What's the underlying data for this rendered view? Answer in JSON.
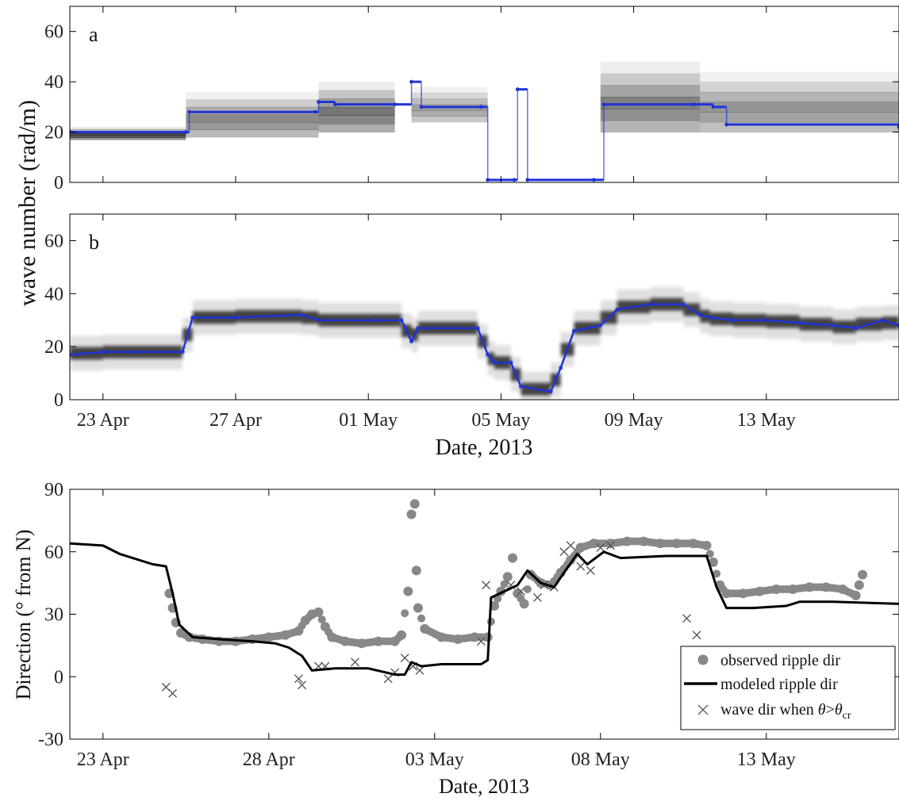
{
  "figure": {
    "date_axis_label": "Date, 2013",
    "wavenumber_axis_label": "wave number (rad/m)",
    "direction_axis_label": "Direction (° from N)"
  },
  "colors": {
    "trace": "#1f33d6",
    "observed": "#888888",
    "modeled": "#000000",
    "cross": "#555555",
    "axis": "#000000"
  },
  "chart_data": [
    {
      "id": "a",
      "type": "heatmap",
      "panel_label": "a",
      "ylabel": "wave number (rad/m)",
      "xlabel": "",
      "xlim": [
        "2013-04-22",
        "2013-05-17"
      ],
      "ylim": [
        0,
        70
      ],
      "yticks": [
        0,
        20,
        40,
        60
      ],
      "xticks": [
        "2013-04-23",
        "2013-04-27",
        "2013-05-01",
        "2013-05-05",
        "2013-05-09",
        "2013-05-13"
      ],
      "xtick_labels": [
        "23 Apr",
        "27 Apr",
        "01 May",
        "05 May",
        "09 May",
        "13 May"
      ],
      "grid": false,
      "background_bands": [
        {
          "x0": "2013-04-22",
          "x1": "2013-04-25.5",
          "y0": 17,
          "y1": 22,
          "shade": 0.85
        },
        {
          "x0": "2013-04-25.5",
          "x1": "2013-04-29.5",
          "y0": 18,
          "y1": 36,
          "shade": 0.55
        },
        {
          "x0": "2013-04-29.5",
          "x1": "2013-05-01.8",
          "y0": 20,
          "y1": 40,
          "shade": 0.65
        },
        {
          "x0": "2013-05-02.3",
          "x1": "2013-05-04.6",
          "y0": 24,
          "y1": 38,
          "shade": 0.45
        },
        {
          "x0": "2013-05-08",
          "x1": "2013-05-11",
          "y0": 20,
          "y1": 48,
          "shade": 0.6
        },
        {
          "x0": "2013-05-11",
          "x1": "2013-05-17",
          "y0": 20,
          "y1": 44,
          "shade": 0.5
        }
      ],
      "trace": [
        [
          "2013-04-22",
          20
        ],
        [
          "2013-04-25.5",
          20
        ],
        [
          "2013-04-25.6",
          28
        ],
        [
          "2013-04-29.4",
          28
        ],
        [
          "2013-04-29.5",
          32
        ],
        [
          "2013-04-30",
          31
        ],
        [
          "2013-05-01.8",
          31
        ],
        [
          "2013-05-02.3",
          40
        ],
        [
          "2013-05-02.6",
          30
        ],
        [
          "2013-05-04.4",
          30
        ],
        [
          "2013-05-04.6",
          1
        ],
        [
          "2013-05-05.4",
          1
        ],
        [
          "2013-05-05.5",
          37
        ],
        [
          "2013-05-05.8",
          1
        ],
        [
          "2013-05-07.8",
          1
        ],
        [
          "2013-05-08.1",
          31
        ],
        [
          "2013-05-10.8",
          31
        ],
        [
          "2013-05-11.4",
          30
        ],
        [
          "2013-05-11.8",
          23
        ],
        [
          "2013-05-17",
          22
        ]
      ]
    },
    {
      "id": "b",
      "type": "heatmap",
      "panel_label": "b",
      "ylabel": "wave number (rad/m)",
      "xlabel": "Date, 2013",
      "xlim": [
        "2013-04-22",
        "2013-05-17"
      ],
      "ylim": [
        0,
        70
      ],
      "yticks": [
        0,
        20,
        40,
        60
      ],
      "xticks": [
        "2013-04-23",
        "2013-04-27",
        "2013-05-01",
        "2013-05-05",
        "2013-05-09",
        "2013-05-13"
      ],
      "xtick_labels": [
        "23 Apr",
        "27 Apr",
        "01 May",
        "05 May",
        "09 May",
        "13 May"
      ],
      "grid": false,
      "trace": [
        [
          "2013-04-22",
          17
        ],
        [
          "2013-04-23",
          18
        ],
        [
          "2013-04-24",
          18
        ],
        [
          "2013-04-25.4",
          18
        ],
        [
          "2013-04-25.7",
          31
        ],
        [
          "2013-04-27",
          31
        ],
        [
          "2013-04-29",
          32
        ],
        [
          "2013-04-29.5",
          30
        ],
        [
          "2013-05-01",
          30
        ],
        [
          "2013-05-02",
          30
        ],
        [
          "2013-05-02.3",
          22
        ],
        [
          "2013-05-02.5",
          27
        ],
        [
          "2013-05-04.3",
          27
        ],
        [
          "2013-05-04.6",
          17
        ],
        [
          "2013-05-04.8",
          14
        ],
        [
          "2013-05-05.3",
          14
        ],
        [
          "2013-05-05.6",
          5
        ],
        [
          "2013-05-06.5",
          3
        ],
        [
          "2013-05-06.8",
          12
        ],
        [
          "2013-05-07.2",
          26
        ],
        [
          "2013-05-08",
          28
        ],
        [
          "2013-05-08.5",
          34
        ],
        [
          "2013-05-09.5",
          36
        ],
        [
          "2013-05-10.5",
          36
        ],
        [
          "2013-05-11",
          32
        ],
        [
          "2013-05-11.3",
          31
        ],
        [
          "2013-05-12",
          30
        ],
        [
          "2013-05-13",
          30
        ],
        [
          "2013-05-14",
          29
        ],
        [
          "2013-05-15",
          28
        ],
        [
          "2013-05-15.7",
          27
        ],
        [
          "2013-05-16.5",
          30
        ],
        [
          "2013-05-17",
          28
        ]
      ]
    },
    {
      "id": "c",
      "type": "scatter",
      "panel_label": "",
      "ylabel": "Direction (° from N)",
      "xlabel": "Date, 2013",
      "xlim": [
        "2013-04-22",
        "2013-05-17"
      ],
      "ylim": [
        -30,
        90
      ],
      "yticks": [
        -30,
        0,
        30,
        60,
        90
      ],
      "xticks": [
        "2013-04-23",
        "2013-04-28",
        "2013-05-03",
        "2013-05-08",
        "2013-05-13"
      ],
      "xtick_labels": [
        "23 Apr",
        "28 Apr",
        "03 May",
        "08 May",
        "13 May"
      ],
      "grid": false,
      "legend_position": "bottom-right",
      "series": [
        {
          "name": "observed ripple dir",
          "kind": "markers",
          "points": [
            [
              "2013-04-25.0",
              40
            ],
            [
              "2013-04-25.1",
              33
            ],
            [
              "2013-04-25.2",
              26
            ],
            [
              "2013-04-25.35",
              21
            ],
            [
              "2013-04-25.6",
              19
            ],
            [
              "2013-04-26",
              18
            ],
            [
              "2013-04-26.5",
              17
            ],
            [
              "2013-04-27",
              17
            ],
            [
              "2013-04-27.5",
              18
            ],
            [
              "2013-04-28",
              19
            ],
            [
              "2013-04-28.5",
              20
            ],
            [
              "2013-04-28.9",
              22
            ],
            [
              "2013-04-29.1",
              27
            ],
            [
              "2013-04-29.3",
              30
            ],
            [
              "2013-04-29.5",
              31
            ],
            [
              "2013-04-29.7",
              24
            ],
            [
              "2013-04-29.9",
              19
            ],
            [
              "2013-04-30.3",
              17
            ],
            [
              "2013-04-30.8",
              16
            ],
            [
              "2013-05-01.3",
              17
            ],
            [
              "2013-05-01.8",
              17
            ],
            [
              "2013-05-02.0",
              20
            ],
            [
              "2013-05-02.2",
              41
            ],
            [
              "2013-05-02.3",
              78
            ],
            [
              "2013-05-02.4",
              83
            ],
            [
              "2013-05-02.45",
              51
            ],
            [
              "2013-05-02.5",
              33
            ],
            [
              "2013-05-02.7",
              23
            ],
            [
              "2013-05-03.2",
              19
            ],
            [
              "2013-05-03.7",
              18
            ],
            [
              "2013-05-04.2",
              19
            ],
            [
              "2013-05-04.6",
              19
            ],
            [
              "2013-05-04.8",
              34
            ],
            [
              "2013-05-05",
              41
            ],
            [
              "2013-05-05.2",
              48
            ],
            [
              "2013-05-05.35",
              57
            ],
            [
              "2013-05-05.5",
              40
            ],
            [
              "2013-05-05.7",
              35
            ],
            [
              "2013-05-05.9",
              49
            ],
            [
              "2013-05-06.2",
              45
            ],
            [
              "2013-05-06.5",
              44
            ],
            [
              "2013-05-06.8",
              50
            ],
            [
              "2013-05-07.1",
              56
            ],
            [
              "2013-05-07.4",
              62
            ],
            [
              "2013-05-07.8",
              64
            ],
            [
              "2013-05-08.3",
              64
            ],
            [
              "2013-05-08.8",
              65
            ],
            [
              "2013-05-09.3",
              65
            ],
            [
              "2013-05-09.8",
              64
            ],
            [
              "2013-05-10.3",
              64
            ],
            [
              "2013-05-10.8",
              64
            ],
            [
              "2013-05-11.2",
              63
            ],
            [
              "2013-05-11.4",
              55
            ],
            [
              "2013-05-11.6",
              44
            ],
            [
              "2013-05-11.8",
              40
            ],
            [
              "2013-05-12.3",
              40
            ],
            [
              "2013-05-12.8",
              41
            ],
            [
              "2013-05-13.3",
              42
            ],
            [
              "2013-05-13.8",
              42
            ],
            [
              "2013-05-14.3",
              43
            ],
            [
              "2013-05-14.8",
              43
            ],
            [
              "2013-05-15.3",
              42
            ],
            [
              "2013-05-15.7",
              39
            ],
            [
              "2013-05-15.8",
              44
            ],
            [
              "2013-05-15.9",
              49
            ]
          ]
        },
        {
          "name": "modeled ripple dir",
          "kind": "line",
          "points": [
            [
              "2013-04-22",
              64
            ],
            [
              "2013-04-23",
              63
            ],
            [
              "2013-04-23.5",
              59
            ],
            [
              "2013-04-24.5",
              54
            ],
            [
              "2013-04-24.9",
              53
            ],
            [
              "2013-04-25.1",
              40
            ],
            [
              "2013-04-25.3",
              25
            ],
            [
              "2013-04-25.7",
              19
            ],
            [
              "2013-04-26.5",
              18
            ],
            [
              "2013-04-27.5",
              17
            ],
            [
              "2013-04-28.2",
              16
            ],
            [
              "2013-04-28.6",
              14
            ],
            [
              "2013-04-29.0",
              10
            ],
            [
              "2013-04-29.3",
              3
            ],
            [
              "2013-04-30",
              4
            ],
            [
              "2013-05-01",
              4
            ],
            [
              "2013-05-01.8",
              1
            ],
            [
              "2013-05-02.1",
              1
            ],
            [
              "2013-05-02.3",
              7
            ],
            [
              "2013-05-02.6",
              5
            ],
            [
              "2013-05-03.2",
              6
            ],
            [
              "2013-05-04.4",
              6
            ],
            [
              "2013-05-04.6",
              8
            ],
            [
              "2013-05-04.7",
              38
            ],
            [
              "2013-05-05.5",
              44
            ],
            [
              "2013-05-05.8",
              51
            ],
            [
              "2013-05-06.2",
              45
            ],
            [
              "2013-05-06.6",
              43
            ],
            [
              "2013-05-06.9",
              50
            ],
            [
              "2013-05-07.3",
              59
            ],
            [
              "2013-05-07.6",
              54
            ],
            [
              "2013-05-08.1",
              60
            ],
            [
              "2013-05-08.6",
              57
            ],
            [
              "2013-05-10",
              58
            ],
            [
              "2013-05-11.2",
              58
            ],
            [
              "2013-05-11.5",
              43
            ],
            [
              "2013-05-11.8",
              33
            ],
            [
              "2013-05-12.6",
              33
            ],
            [
              "2013-05-13.6",
              34
            ],
            [
              "2013-05-14.0",
              36
            ],
            [
              "2013-05-15",
              36
            ],
            [
              "2013-05-17",
              35
            ]
          ]
        },
        {
          "name": "wave dir when θ>θcr",
          "kind": "crosses",
          "points": [
            [
              "2013-04-24.9",
              -5
            ],
            [
              "2013-04-25.1",
              -8
            ],
            [
              "2013-04-28.9",
              -1
            ],
            [
              "2013-04-29.0",
              -4
            ],
            [
              "2013-04-29.5",
              5
            ],
            [
              "2013-04-29.7",
              5
            ],
            [
              "2013-04-30.6",
              7
            ],
            [
              "2013-05-01.6",
              -1
            ],
            [
              "2013-05-01.8",
              2
            ],
            [
              "2013-05-02.1",
              9
            ],
            [
              "2013-05-02.35",
              5
            ],
            [
              "2013-05-02.55",
              3
            ],
            [
              "2013-05-04.4",
              17
            ],
            [
              "2013-05-04.55",
              44
            ],
            [
              "2013-05-05.3",
              44
            ],
            [
              "2013-05-05.6",
              41
            ],
            [
              "2013-05-06.1",
              38
            ],
            [
              "2013-05-06.3",
              44
            ],
            [
              "2013-05-06.6",
              43
            ],
            [
              "2013-05-06.9",
              60
            ],
            [
              "2013-05-07.1",
              63
            ],
            [
              "2013-05-07.4",
              53
            ],
            [
              "2013-05-07.7",
              51
            ],
            [
              "2013-05-08.0",
              62
            ],
            [
              "2013-05-08.3",
              63
            ],
            [
              "2013-05-10.6",
              28
            ],
            [
              "2013-05-10.9",
              20
            ]
          ]
        }
      ]
    }
  ]
}
